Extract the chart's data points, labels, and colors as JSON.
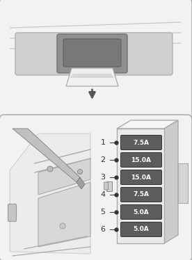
{
  "bg_color": "#ffffff",
  "panel_bg": "#f2f2f2",
  "panel_edge": "#b0b0b0",
  "fuses": [
    {
      "num": 1,
      "label": "7.5A"
    },
    {
      "num": 2,
      "label": "15.0A"
    },
    {
      "num": 3,
      "label": "15.0A"
    },
    {
      "num": 4,
      "label": "7.5A"
    },
    {
      "num": 5,
      "label": "5.0A"
    },
    {
      "num": 6,
      "label": "5.0A"
    }
  ],
  "fuse_color": "#5c5c5c",
  "fuse_text_color": "#ffffff",
  "box_face": "#ebebeb",
  "box_side": "#cccccc",
  "box_top": "#f5f5f5",
  "connector_color": "#d5d5d5",
  "line_color": "#444444",
  "number_color": "#333333",
  "dot_color": "#333333",
  "arrow_color": "#555555",
  "sketch_line": "#aaaaaa",
  "sketch_fill": "#e0e0e0"
}
